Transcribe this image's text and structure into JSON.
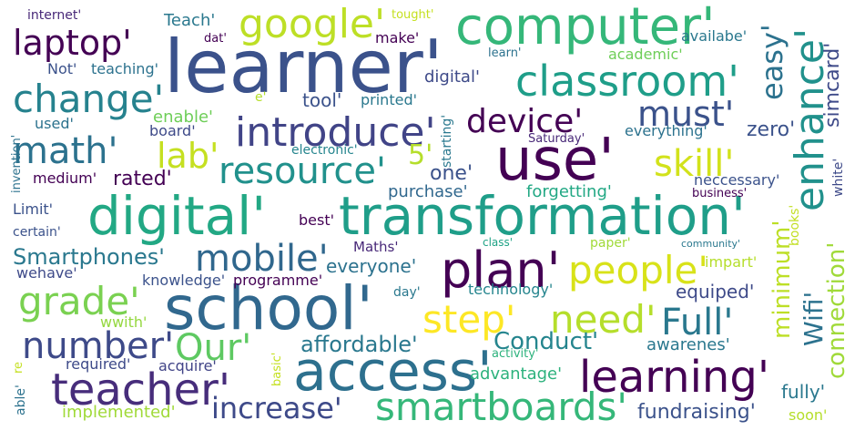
{
  "words": [
    {
      "text": "learner'",
      "color": "#3b528b"
    },
    {
      "text": "computer'",
      "color": "#35b779"
    },
    {
      "text": "google'",
      "color": "#bddf26"
    },
    {
      "text": "laptop'",
      "color": "#440154"
    },
    {
      "text": "classroom'",
      "color": "#1f9e89"
    },
    {
      "text": "change'",
      "color": "#26828e"
    },
    {
      "text": "introduce'",
      "color": "#414487"
    },
    {
      "text": "device'",
      "color": "#440154"
    },
    {
      "text": "must'",
      "color": "#3b528b"
    },
    {
      "text": "math'",
      "color": "#2c728e"
    },
    {
      "text": "lab'",
      "color": "#c5e021"
    },
    {
      "text": "resource'",
      "color": "#21918c"
    },
    {
      "text": "use'",
      "color": "#440154"
    },
    {
      "text": "skill'",
      "color": "#d2e21b"
    },
    {
      "text": "digital'",
      "color": "#22a884"
    },
    {
      "text": "transformation'",
      "color": "#1f9e89"
    },
    {
      "text": "mobile'",
      "color": "#30678d"
    },
    {
      "text": "plan'",
      "color": "#440154"
    },
    {
      "text": "people'",
      "color": "#d8e219"
    },
    {
      "text": "grade'",
      "color": "#7ad151"
    },
    {
      "text": "school'",
      "color": "#31688e"
    },
    {
      "text": "step'",
      "color": "#fde725"
    },
    {
      "text": "need'",
      "color": "#b5de2b"
    },
    {
      "text": "Full'",
      "color": "#2a788e"
    },
    {
      "text": "number'",
      "color": "#3e4a89"
    },
    {
      "text": "Our'",
      "color": "#5ec962"
    },
    {
      "text": "access'",
      "color": "#2d708e"
    },
    {
      "text": "learning'",
      "color": "#440154"
    },
    {
      "text": "teacher'",
      "color": "#472d7b"
    },
    {
      "text": "smartboards'",
      "color": "#35b779"
    },
    {
      "text": "increase'",
      "color": "#3e4a89"
    },
    {
      "text": "affordable'",
      "color": "#2a788e"
    },
    {
      "text": "Conduct'",
      "color": "#25858e"
    },
    {
      "text": "fundraising'",
      "color": "#3b528b"
    },
    {
      "text": "Smartphones'",
      "color": "#2a788e"
    },
    {
      "text": "everyone'",
      "color": "#2c728e"
    },
    {
      "text": "equiped'",
      "color": "#3e4a89"
    },
    {
      "text": "advantage'",
      "color": "#2db27d"
    },
    {
      "text": "implemented'",
      "color": "#a0da39"
    },
    {
      "text": "fully'",
      "color": "#2a788e"
    },
    {
      "text": "soon'",
      "color": "#b5de2b"
    },
    {
      "text": "awarenes'",
      "color": "#2a788e"
    },
    {
      "text": "required'",
      "color": "#3e4a89"
    },
    {
      "text": "acquire'",
      "color": "#414487"
    },
    {
      "text": "wwith'",
      "color": "#95d840"
    },
    {
      "text": "knowledge'",
      "color": "#3b528b"
    },
    {
      "text": "programme'",
      "color": "#440154"
    },
    {
      "text": "technology'",
      "color": "#25858e"
    },
    {
      "text": "impart'",
      "color": "#b5de2b"
    },
    {
      "text": "paper'",
      "color": "#a0da39"
    },
    {
      "text": "class'",
      "color": "#20a386"
    },
    {
      "text": "community'",
      "color": "#2a788e"
    },
    {
      "text": "Maths'",
      "color": "#482878"
    },
    {
      "text": "best'",
      "color": "#440154"
    },
    {
      "text": "rated'",
      "color": "#440154"
    },
    {
      "text": "one'",
      "color": "#3b528b"
    },
    {
      "text": "purchase'",
      "color": "#31688e"
    },
    {
      "text": "forgetting'",
      "color": "#22a884"
    },
    {
      "text": "neccessary'",
      "color": "#3b528b"
    },
    {
      "text": "business'",
      "color": "#440154"
    },
    {
      "text": "zero'",
      "color": "#3b528b"
    },
    {
      "text": "everything'",
      "color": "#2c728e"
    },
    {
      "text": "Saturday'",
      "color": "#482878"
    },
    {
      "text": "electronic'",
      "color": "#25858e"
    },
    {
      "text": "enable'",
      "color": "#6ece58"
    },
    {
      "text": "board'",
      "color": "#3e4a89"
    },
    {
      "text": "used'",
      "color": "#2c728e"
    },
    {
      "text": "medium'",
      "color": "#440154"
    },
    {
      "text": "Limit'",
      "color": "#3b528b"
    },
    {
      "text": "certain'",
      "color": "#3b528b"
    },
    {
      "text": "wehave'",
      "color": "#3e4a89"
    },
    {
      "text": "day'",
      "color": "#2a788e"
    },
    {
      "text": "tool'",
      "color": "#3b528b"
    },
    {
      "text": "printed'",
      "color": "#2a788e"
    },
    {
      "text": "digital'",
      "color": "#3e4a89"
    },
    {
      "text": "e'",
      "color": "#b5de2b"
    },
    {
      "text": "Not'",
      "color": "#3b528b"
    },
    {
      "text": "teaching'",
      "color": "#2c728e"
    },
    {
      "text": "academic'",
      "color": "#6ece58"
    },
    {
      "text": "learn'",
      "color": "#2c728e"
    },
    {
      "text": "make'",
      "color": "#440154"
    },
    {
      "text": "dat'",
      "color": "#440154"
    },
    {
      "text": "Teach'",
      "color": "#2a788e"
    },
    {
      "text": "internet'",
      "color": "#482878"
    },
    {
      "text": "tought'",
      "color": "#c5e021"
    },
    {
      "text": "availabe'",
      "color": "#2a788e"
    },
    {
      "text": "5'",
      "color": "#b5de2b"
    },
    {
      "text": "activity'",
      "color": "#2db27d"
    },
    {
      "text": "easy'",
      "color": "#2c728e"
    },
    {
      "text": "enhance'",
      "color": "#21918c"
    },
    {
      "text": "simcard'",
      "color": "#3e4a89"
    },
    {
      "text": "white'",
      "color": "#3e4a89"
    },
    {
      "text": "connection'",
      "color": "#a0da39"
    },
    {
      "text": "minimum'",
      "color": "#bddf26"
    },
    {
      "text": "Wifi'",
      "color": "#2c728e"
    },
    {
      "text": "books'",
      "color": "#c2df23"
    },
    {
      "text": "starting'",
      "color": "#2a788e"
    },
    {
      "text": "invention'",
      "color": "#2c728e"
    },
    {
      "text": "basic'",
      "color": "#c5e021"
    },
    {
      "text": "able'",
      "color": "#2c728e"
    },
    {
      "text": "re",
      "color": "#c5e021"
    }
  ]
}
